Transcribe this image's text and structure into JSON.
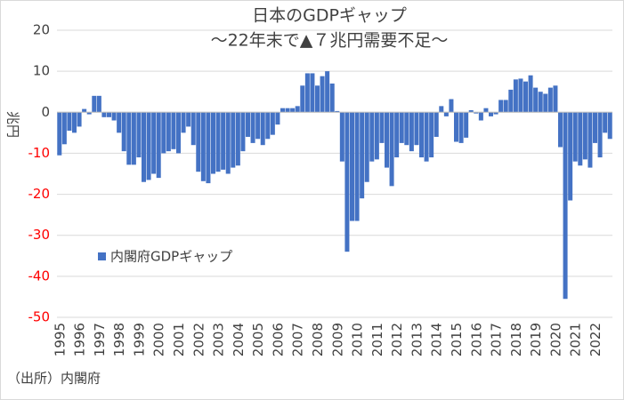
{
  "chart_data": {
    "type": "bar",
    "title": "日本のGDPギャップ",
    "subtitle": "～22年末で▲７兆円需要不足～",
    "y_label": "兆円",
    "source": "（出所）内閣府",
    "categories": [
      "1995",
      null,
      null,
      null,
      "1996",
      null,
      null,
      null,
      "1997",
      null,
      null,
      null,
      "1998",
      null,
      null,
      null,
      "1999",
      null,
      null,
      null,
      "2000",
      null,
      null,
      null,
      "2001",
      null,
      null,
      null,
      "2002",
      null,
      null,
      null,
      "2003",
      null,
      null,
      null,
      "2004",
      null,
      null,
      null,
      "2005",
      null,
      null,
      null,
      "2006",
      null,
      null,
      null,
      "2007",
      null,
      null,
      null,
      "2008",
      null,
      null,
      null,
      "2009",
      null,
      null,
      null,
      "2010",
      null,
      null,
      null,
      "2011",
      null,
      null,
      null,
      "2012",
      null,
      null,
      null,
      "2013",
      null,
      null,
      null,
      "2014",
      null,
      null,
      null,
      "2015",
      null,
      null,
      null,
      "2016",
      null,
      null,
      null,
      "2017",
      null,
      null,
      null,
      "2018",
      null,
      null,
      null,
      "2019",
      null,
      null,
      null,
      "2020",
      null,
      null,
      null,
      "2021",
      null,
      null,
      null,
      "2022",
      null,
      null,
      null
    ],
    "series": [
      {
        "name": "内閣府GDPギャップ",
        "color": "#4472c4",
        "values": [
          -10.5,
          -7.8,
          -4.5,
          -5,
          -3.5,
          0.8,
          -0.5,
          4,
          4,
          -1.2,
          -1.2,
          -2,
          -5,
          -9.5,
          -12.8,
          -12.8,
          -11,
          -17,
          -16.5,
          -15,
          -16,
          -10,
          -9.5,
          -9,
          -10,
          -5,
          -3.5,
          -8,
          -14.5,
          -16.8,
          -17.3,
          -15,
          -14.5,
          -14,
          -15,
          -13.5,
          -13,
          -9.5,
          -6,
          -7.5,
          -6.5,
          -8,
          -6.5,
          -5.5,
          -3,
          1,
          1,
          1,
          1.5,
          6.5,
          9.5,
          9.5,
          6.5,
          8.8,
          10,
          7,
          0.3,
          -12,
          -34,
          -26.5,
          -26.5,
          -21,
          -17,
          -12,
          -11.5,
          -7.5,
          -13.5,
          -18,
          -11,
          -7.5,
          -8,
          -9.5,
          -8,
          -11,
          -12,
          -11,
          -6,
          1.5,
          -1,
          3.2,
          -7.2,
          -7.5,
          -6.2,
          0.5,
          -0.3,
          -2,
          1,
          -1,
          -0.5,
          3,
          3,
          5.5,
          8,
          8.2,
          7.5,
          9,
          6,
          5,
          4.5,
          6,
          6.5,
          -8.5,
          -45.5,
          -21.5,
          -12,
          -13,
          -11.5,
          -13.5,
          -7.5,
          -11,
          -5,
          -6.5
        ]
      }
    ],
    "ylim": [
      -50,
      20
    ],
    "yticks": [
      -50,
      -40,
      -30,
      -20,
      -10,
      0,
      10,
      20
    ],
    "grid": true,
    "negative_tick_color": "#ff0000",
    "legend": "left"
  }
}
